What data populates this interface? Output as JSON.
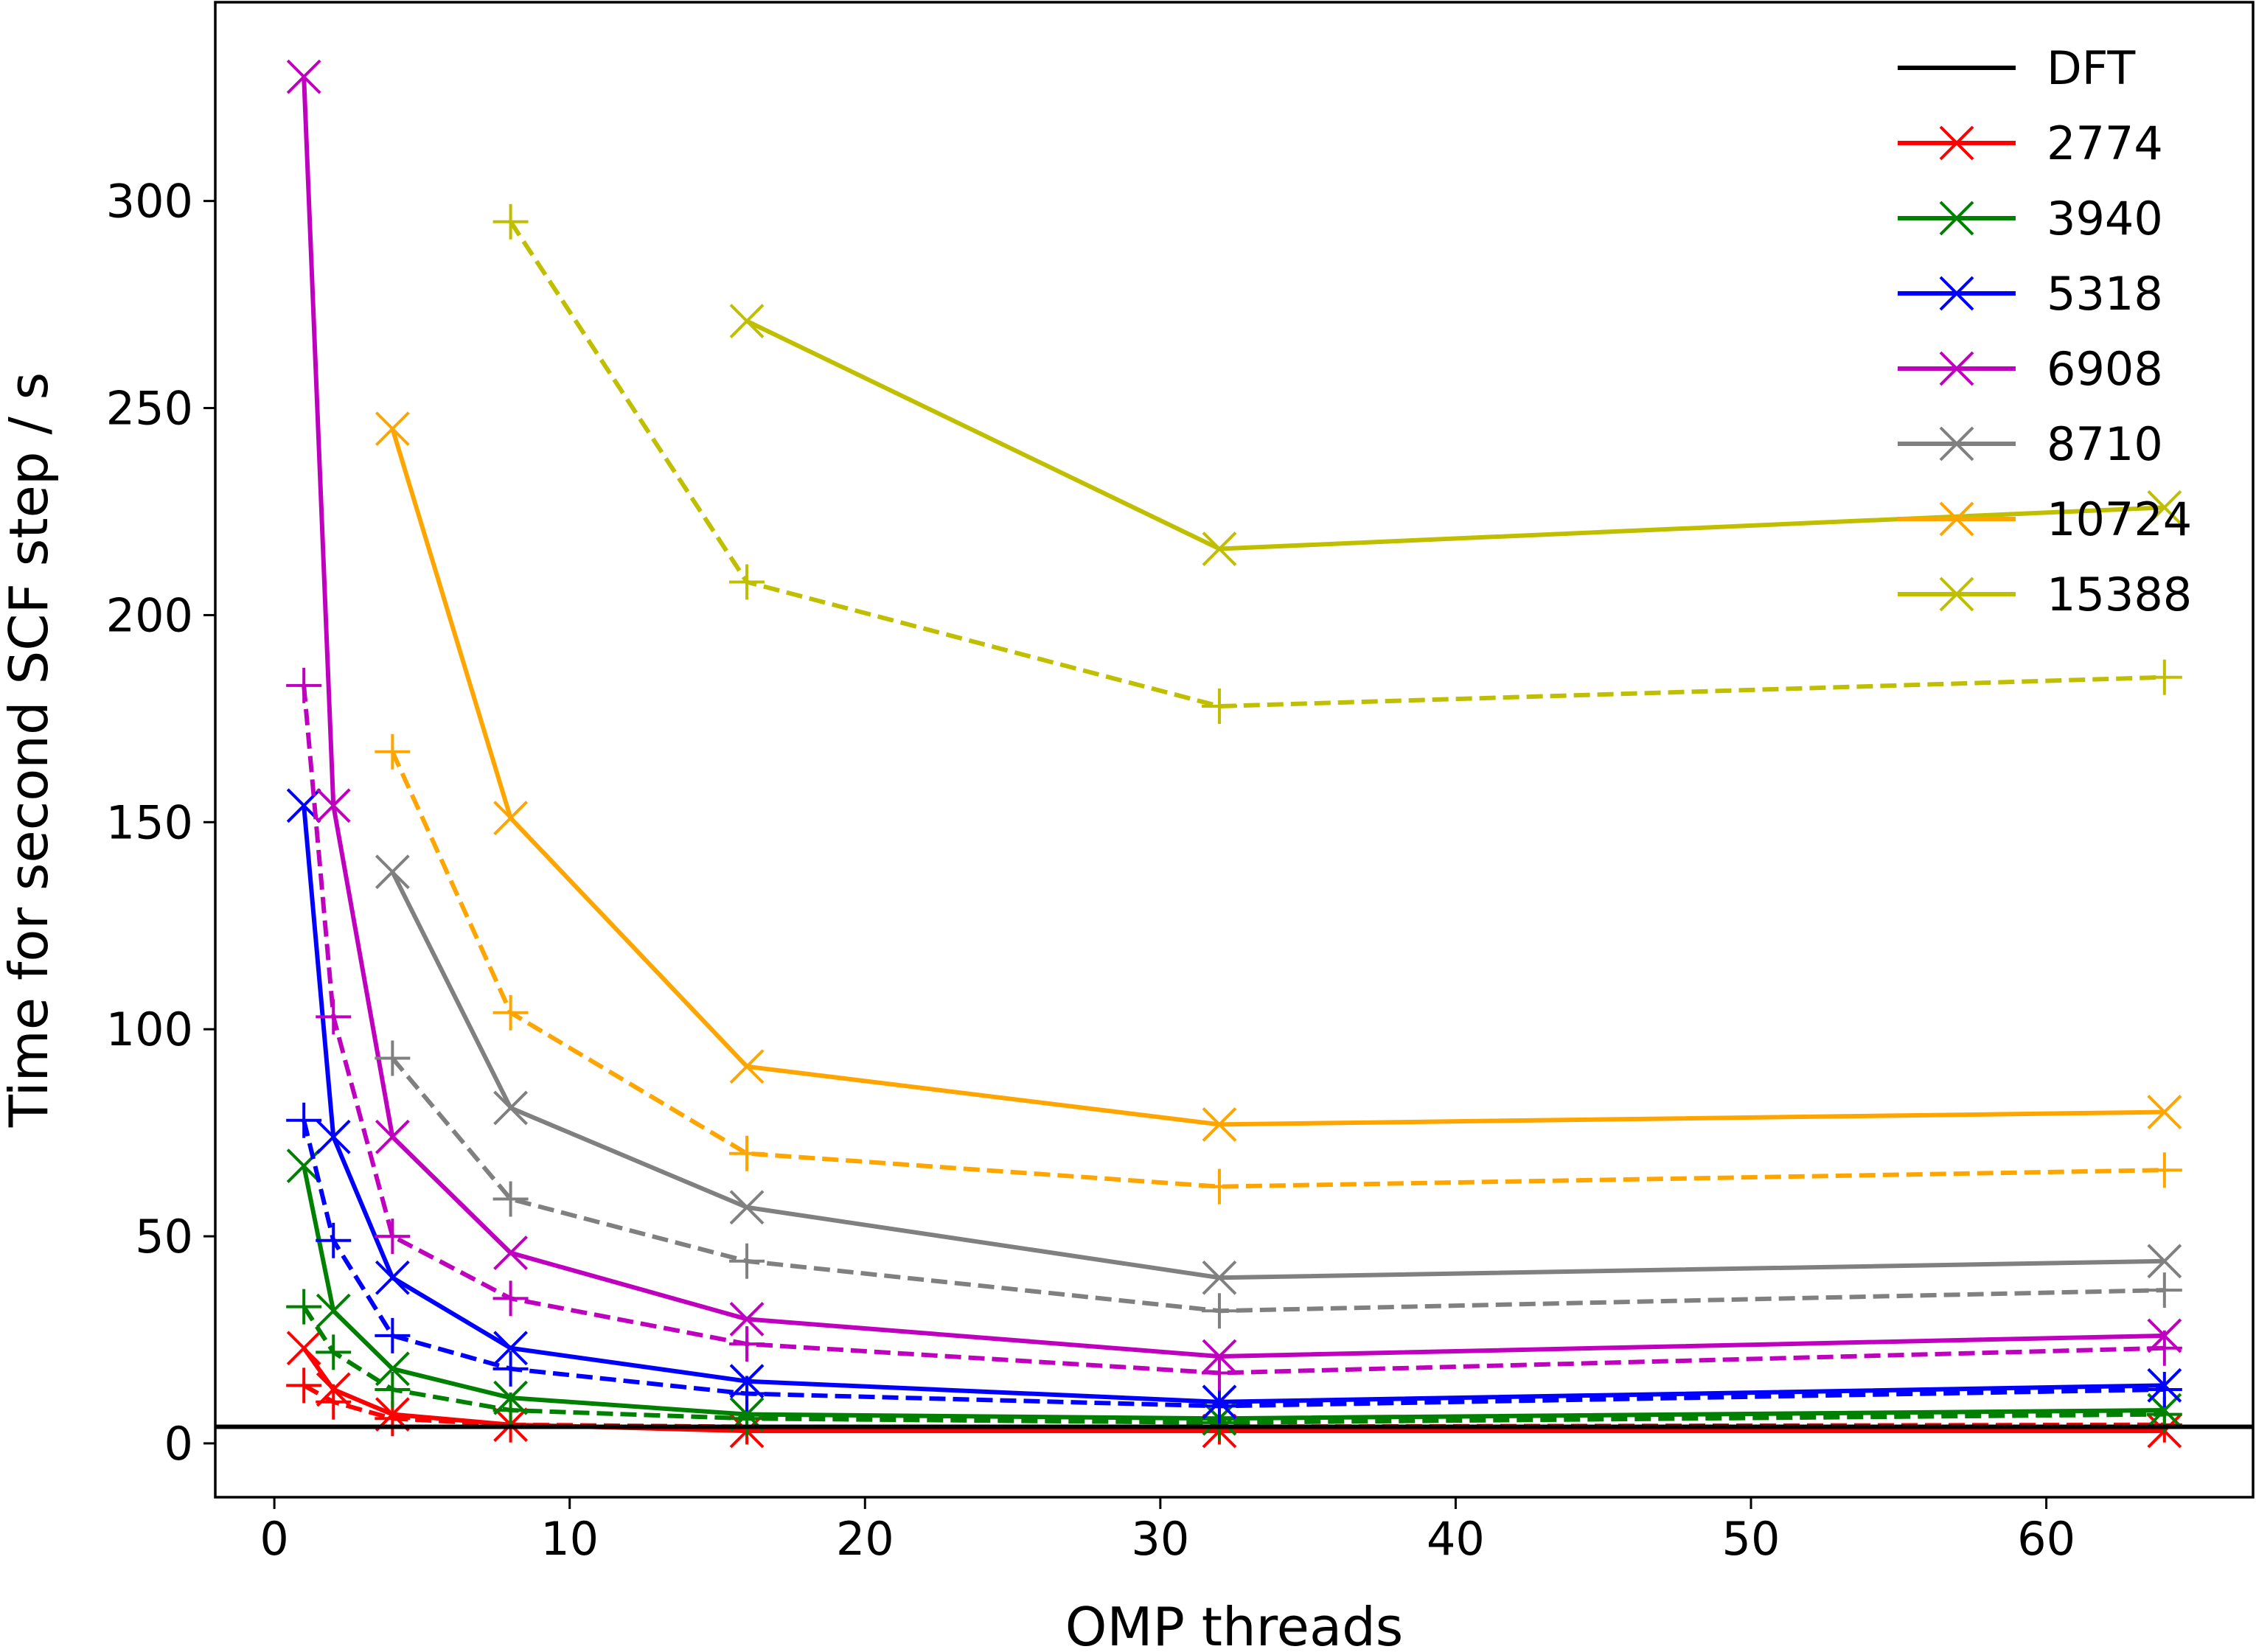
{
  "chart_data": {
    "type": "line",
    "xlabel": "OMP threads",
    "ylabel": "Time for second SCF step / s",
    "xlim": [
      -2,
      67
    ],
    "ylim": [
      -13,
      348
    ],
    "x_ticks": [
      0,
      10,
      20,
      30,
      40,
      50,
      60
    ],
    "y_ticks": [
      0,
      50,
      100,
      150,
      200,
      250,
      300
    ],
    "grid": false,
    "legend_position": "top-right",
    "reference_line": {
      "name": "DFT",
      "y": 4,
      "color": "#000000"
    },
    "x": [
      1,
      2,
      4,
      8,
      16,
      32,
      64
    ],
    "series": [
      {
        "name": "2774",
        "color": "#ff0000",
        "solid_x": [
          1,
          2,
          4,
          8,
          16,
          32,
          64
        ],
        "solid_y": [
          23,
          13,
          7,
          4.5,
          3,
          3,
          3
        ],
        "dashed_x": [
          1,
          2,
          4,
          8,
          16,
          32,
          64
        ],
        "dashed_y": [
          14,
          10,
          6,
          4.5,
          4,
          4,
          4.5
        ]
      },
      {
        "name": "3940",
        "color": "#008000",
        "solid_x": [
          1,
          2,
          4,
          8,
          16,
          32,
          64
        ],
        "solid_y": [
          67,
          32,
          18,
          11,
          7,
          6,
          8
        ],
        "dashed_x": [
          1,
          2,
          4,
          8,
          16,
          32,
          64
        ],
        "dashed_y": [
          33,
          22,
          13,
          8,
          6,
          5,
          7
        ]
      },
      {
        "name": "5318",
        "color": "#0000ff",
        "solid_x": [
          1,
          2,
          4,
          8,
          16,
          32,
          64
        ],
        "solid_y": [
          154,
          74,
          40,
          23,
          15,
          10,
          14
        ],
        "dashed_x": [
          1,
          2,
          4,
          8,
          16,
          32,
          64
        ],
        "dashed_y": [
          78,
          49,
          26,
          18,
          12,
          9,
          13
        ]
      },
      {
        "name": "6908",
        "color": "#bf00bf",
        "solid_x": [
          1,
          2,
          4,
          8,
          16,
          32,
          64
        ],
        "solid_y": [
          330,
          154,
          74,
          46,
          30,
          21,
          26
        ],
        "dashed_x": [
          1,
          2,
          4,
          8,
          16,
          32,
          64
        ],
        "dashed_y": [
          183,
          103,
          50,
          35,
          24,
          17,
          23
        ]
      },
      {
        "name": "8710",
        "color": "#808080",
        "solid_x": [
          4,
          8,
          16,
          32,
          64
        ],
        "solid_y": [
          138,
          81,
          57,
          40,
          44
        ],
        "dashed_x": [
          4,
          8,
          16,
          32,
          64
        ],
        "dashed_y": [
          93,
          59,
          44,
          32,
          37
        ]
      },
      {
        "name": "10724",
        "color": "#ffa500",
        "solid_x": [
          4,
          8,
          16,
          32,
          64
        ],
        "solid_y": [
          245,
          151,
          91,
          77,
          80
        ],
        "dashed_x": [
          4,
          8,
          16,
          32,
          64
        ],
        "dashed_y": [
          167,
          104,
          70,
          62,
          66
        ]
      },
      {
        "name": "15388",
        "color": "#bfbf00",
        "solid_x": [
          16,
          32,
          64
        ],
        "solid_y": [
          271,
          216,
          226
        ],
        "dashed_x": [
          8,
          16,
          32,
          64
        ],
        "dashed_y": [
          295,
          208,
          178,
          185
        ]
      }
    ]
  }
}
